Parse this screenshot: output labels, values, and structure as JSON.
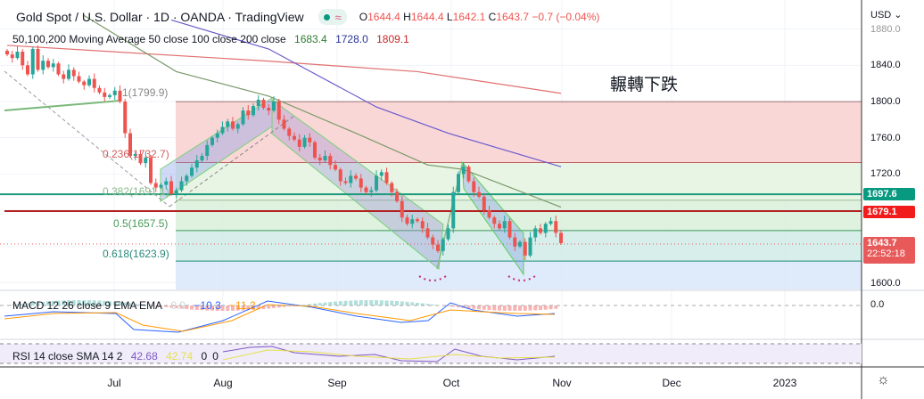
{
  "header": {
    "symbol": "Gold Spot / U.S. Dollar · 1D · OANDA · TradingView",
    "status_icon": "market-open-dot",
    "ohlc": {
      "o_label": "O",
      "o": "1644.4",
      "h_label": "H",
      "h": "1644.4",
      "l_label": "L",
      "l": "1642.1",
      "c_label": "C",
      "c": "1643.7",
      "change": "−0.7 (−0.04%)"
    }
  },
  "ma_legend": {
    "label": "50,100,200 Moving Average 50 close 100 close 200 close",
    "v50": "1683.4",
    "v100": "1728.0",
    "v200": "1809.1"
  },
  "macd_legend": {
    "label": "MACD 12 26 close 9 EMA EMA",
    "hist": "0.9",
    "macd": "−10.3",
    "signal": "−11.2"
  },
  "rsi_legend": {
    "label": "RSI 14 close SMA 14 2",
    "rsi": "42.68",
    "sma": "42.74",
    "a": "0",
    "b": "0"
  },
  "price_axis": {
    "currency": "USD ⌄",
    "ticks": [
      "1880.0",
      "1840.0",
      "1800.0",
      "1760.0",
      "1720.0",
      "1600.0"
    ],
    "macd_tick": "0.0"
  },
  "tags": {
    "level1": "1697.6",
    "level2": "1679.1",
    "last": "1643.7",
    "countdown": "22:52:18"
  },
  "time_axis": [
    "Jul",
    "Aug",
    "Sep",
    "Oct",
    "Nov",
    "Dec",
    "2023"
  ],
  "fib": {
    "l1": "1(1799.9)",
    "l0236": "0.236(1732.7)",
    "l0382": "0.382(1691.1)",
    "l05": "0.5(1657.5)",
    "l0618": "0.618(1623.9)"
  },
  "annotation": "輾轉下跌",
  "colors": {
    "up": "#26a69a",
    "down": "#ef5350",
    "ma50": "#7a9a6a",
    "ma100": "#6a5acd",
    "ma200": "#e07070"
  },
  "chart_data": {
    "type": "candlestick",
    "closes": [
      1852,
      1848,
      1855,
      1840,
      1830,
      1858,
      1835,
      1845,
      1838,
      1842,
      1830,
      1825,
      1835,
      1828,
      1822,
      1818,
      1825,
      1815,
      1810,
      1805,
      1807,
      1812,
      1800,
      1765,
      1740,
      1742,
      1732,
      1738,
      1710,
      1705,
      1708,
      1712,
      1698,
      1702,
      1712,
      1718,
      1727,
      1735,
      1740,
      1752,
      1760,
      1765,
      1772,
      1778,
      1770,
      1775,
      1790,
      1785,
      1795,
      1802,
      1793,
      1790,
      1800,
      1780,
      1770,
      1762,
      1758,
      1750,
      1760,
      1755,
      1738,
      1735,
      1740,
      1730,
      1725,
      1712,
      1710,
      1718,
      1715,
      1705,
      1700,
      1702,
      1718,
      1722,
      1710,
      1700,
      1690,
      1672,
      1665,
      1670,
      1668,
      1660,
      1650,
      1642,
      1635,
      1648,
      1660,
      1700,
      1720,
      1728,
      1712,
      1700,
      1695,
      1680,
      1672,
      1665,
      1660,
      1668,
      1650,
      1640,
      1645,
      1630,
      1650,
      1660,
      1655,
      1665,
      1668,
      1655,
      1643.7
    ],
    "ma50": [
      [
        15,
        1895
      ],
      [
        33,
        1833
      ],
      [
        51,
        1806
      ],
      [
        68,
        1765
      ],
      [
        82,
        1730
      ],
      [
        89,
        1725
      ],
      [
        108,
        1683.4
      ]
    ],
    "ma100": [
      [
        32,
        1890
      ],
      [
        51,
        1858
      ],
      [
        72,
        1794
      ],
      [
        86,
        1765
      ],
      [
        108,
        1728.0
      ]
    ],
    "ma200": [
      [
        0,
        1862
      ],
      [
        50,
        1845
      ],
      [
        80,
        1833
      ],
      [
        108,
        1809.1
      ]
    ],
    "levels": [
      1697.6,
      1679.1
    ],
    "fib_levels": [
      1799.9,
      1732.7,
      1691.1,
      1657.5,
      1623.9
    ],
    "y_range": [
      1580,
      1890
    ]
  }
}
